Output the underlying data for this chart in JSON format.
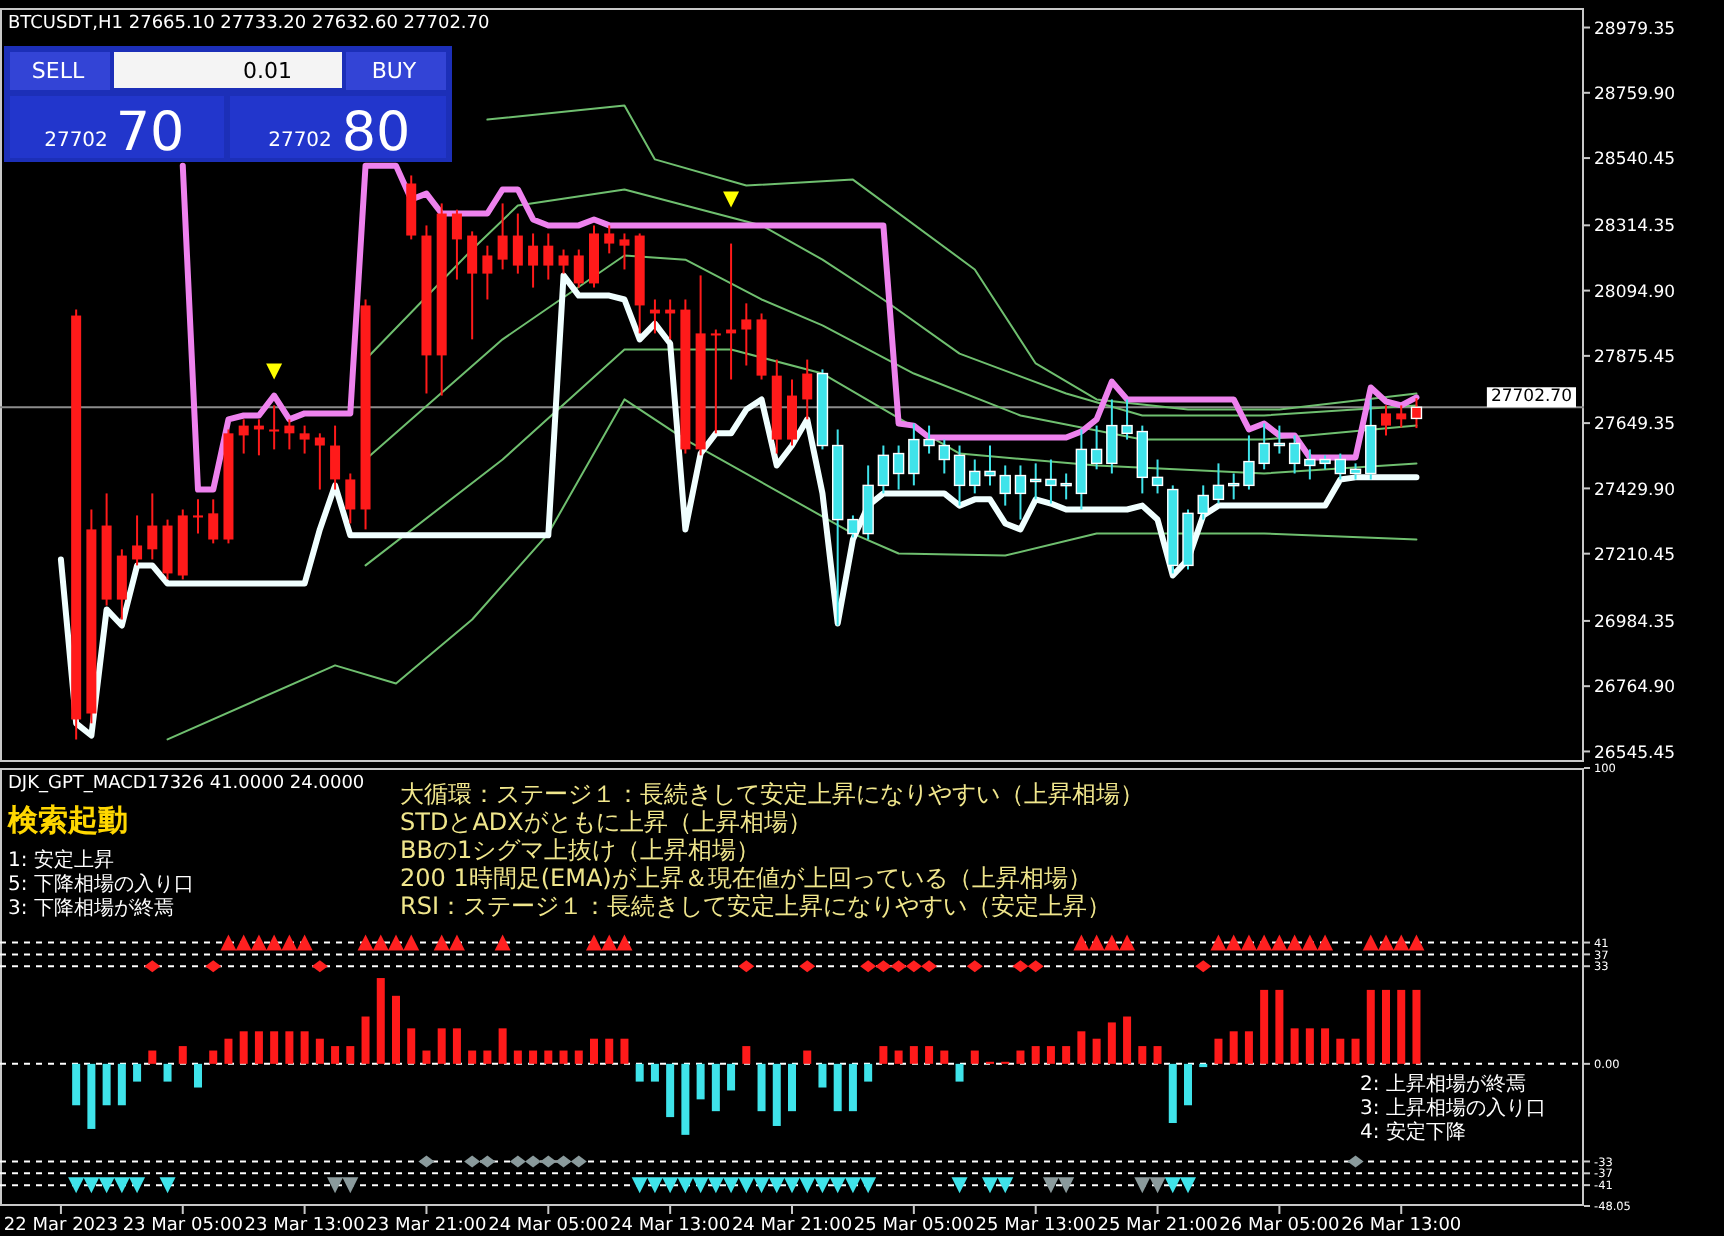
{
  "chart_data": [
    {
      "type": "candlestick",
      "title": "BTCUSDT,H1 27665.10 27733.20 27632.60 27702.70",
      "x": [
        "2023-03-22T21:00",
        "2023-03-22T22:00",
        "2023-03-22T23:00",
        "2023-03-23T00:00",
        "2023-03-23T01:00",
        "2023-03-23T02:00",
        "2023-03-23T03:00",
        "2023-03-23T04:00",
        "2023-03-23T05:00",
        "2023-03-23T06:00",
        "2023-03-23T07:00",
        "2023-03-23T08:00",
        "2023-03-23T09:00",
        "2023-03-23T10:00",
        "2023-03-23T11:00",
        "2023-03-23T12:00",
        "2023-03-23T13:00",
        "2023-03-23T14:00",
        "2023-03-23T15:00",
        "2023-03-23T16:00",
        "2023-03-23T17:00",
        "2023-03-23T18:00",
        "2023-03-23T19:00",
        "2023-03-23T20:00",
        "2023-03-23T21:00",
        "2023-03-23T22:00",
        "2023-03-23T23:00",
        "2023-03-24T00:00",
        "2023-03-24T01:00",
        "2023-03-24T02:00",
        "2023-03-24T03:00",
        "2023-03-24T04:00",
        "2023-03-24T05:00",
        "2023-03-24T06:00",
        "2023-03-24T07:00",
        "2023-03-24T08:00",
        "2023-03-24T09:00",
        "2023-03-24T10:00",
        "2023-03-24T11:00",
        "2023-03-24T12:00",
        "2023-03-24T13:00",
        "2023-03-24T14:00",
        "2023-03-24T15:00",
        "2023-03-24T16:00",
        "2023-03-24T17:00",
        "2023-03-24T18:00",
        "2023-03-24T19:00",
        "2023-03-24T20:00",
        "2023-03-24T21:00",
        "2023-03-24T22:00",
        "2023-03-24T23:00",
        "2023-03-25T00:00",
        "2023-03-25T01:00",
        "2023-03-25T02:00",
        "2023-03-25T03:00",
        "2023-03-25T04:00",
        "2023-03-25T05:00",
        "2023-03-25T06:00",
        "2023-03-25T07:00",
        "2023-03-25T08:00",
        "2023-03-25T09:00",
        "2023-03-25T10:00",
        "2023-03-25T11:00",
        "2023-03-25T12:00",
        "2023-03-25T13:00",
        "2023-03-25T14:00",
        "2023-03-25T15:00",
        "2023-03-25T16:00",
        "2023-03-25T17:00",
        "2023-03-25T18:00",
        "2023-03-25T19:00",
        "2023-03-25T20:00",
        "2023-03-25T21:00",
        "2023-03-25T22:00",
        "2023-03-25T23:00",
        "2023-03-26T00:00",
        "2023-03-26T01:00",
        "2023-03-26T02:00",
        "2023-03-26T03:00",
        "2023-03-26T04:00",
        "2023-03-26T05:00",
        "2023-03-26T06:00",
        "2023-03-26T07:00",
        "2023-03-26T08:00",
        "2023-03-26T09:00",
        "2023-03-26T10:00",
        "2023-03-26T11:00",
        "2023-03-26T12:00",
        "2023-03-26T13:00",
        "2023-03-26T14:00"
      ],
      "ohlc": [
        null,
        [
          28011,
          28031,
          26586,
          26653
        ],
        [
          27292,
          27359,
          26640,
          26673
        ],
        [
          27305,
          27413,
          27036,
          27056
        ],
        [
          27204,
          27225,
          26989,
          27056
        ],
        [
          27238,
          27339,
          27171,
          27191
        ],
        [
          27305,
          27413,
          27191,
          27225
        ],
        [
          27305,
          27325,
          27124,
          27144
        ],
        [
          27339,
          27359,
          27124,
          27137
        ],
        [
          27339,
          27393,
          27278,
          27332
        ],
        [
          27346,
          27393,
          27245,
          27258
        ],
        [
          27615,
          27628,
          27245,
          27258
        ],
        [
          27641,
          27662,
          27547,
          27608
        ],
        [
          27641,
          27662,
          27541,
          27628
        ],
        [
          27628,
          27709,
          27561,
          27621
        ],
        [
          27641,
          27662,
          27561,
          27615
        ],
        [
          27615,
          27641,
          27547,
          27594
        ],
        [
          27601,
          27615,
          27426,
          27574
        ],
        [
          27574,
          27641,
          27426,
          27460
        ],
        [
          27460,
          27480,
          27312,
          27359
        ],
        [
          28045,
          28065,
          27292,
          27359
        ],
        null,
        null,
        [
          28455,
          28482,
          28267,
          28280
        ],
        [
          28280,
          28314,
          27749,
          27877
        ],
        [
          28354,
          28388,
          27742,
          27877
        ],
        [
          28354,
          28367,
          28132,
          28267
        ],
        [
          28280,
          28294,
          27931,
          28152
        ],
        [
          28213,
          28246,
          28065,
          28152
        ],
        [
          28280,
          28388,
          28166,
          28199
        ],
        [
          28280,
          28354,
          28152,
          28179
        ],
        [
          28246,
          28287,
          28105,
          28179
        ],
        [
          28246,
          28287,
          28132,
          28179
        ],
        [
          28213,
          28233,
          28152,
          28179
        ],
        [
          28213,
          28233,
          28105,
          28119
        ],
        [
          28287,
          28314,
          28105,
          28119
        ],
        [
          28287,
          28314,
          28220,
          28253
        ],
        [
          28267,
          28287,
          28166,
          28246
        ],
        [
          28280,
          28287,
          27951,
          28045
        ],
        [
          28031,
          28065,
          27951,
          28018
        ],
        [
          28031,
          28065,
          27931,
          28018
        ],
        [
          28031,
          28065,
          27547,
          27561
        ],
        [
          27951,
          28146,
          27541,
          27561
        ],
        [
          27951,
          27964,
          27615,
          27944
        ],
        [
          27964,
          28253,
          27796,
          27951
        ],
        [
          27998,
          28052,
          27843,
          27964
        ],
        [
          27998,
          28018,
          27796,
          27809
        ],
        [
          27809,
          27863,
          27547,
          27594
        ],
        [
          27742,
          27796,
          27574,
          27594
        ],
        [
          27816,
          27863,
          27662,
          27729
        ],
        [
          27574,
          27830,
          27561,
          27816
        ],
        [
          27325,
          27628,
          26969,
          27574
        ],
        [
          27278,
          27339,
          27265,
          27325
        ],
        [
          27278,
          27507,
          27258,
          27440
        ],
        [
          27440,
          27574,
          27413,
          27541
        ],
        [
          27480,
          27574,
          27426,
          27547
        ],
        [
          27480,
          27648,
          27440,
          27594
        ],
        [
          27574,
          27641,
          27547,
          27594
        ],
        [
          27527,
          27594,
          27480,
          27574
        ],
        [
          27440,
          27574,
          27372,
          27541
        ],
        [
          27440,
          27527,
          27413,
          27487
        ],
        [
          27473,
          27574,
          27440,
          27487
        ],
        [
          27413,
          27507,
          27372,
          27473
        ],
        [
          27413,
          27507,
          27325,
          27473
        ],
        [
          27453,
          27514,
          27393,
          27460
        ],
        [
          27440,
          27527,
          27379,
          27460
        ],
        [
          27440,
          27480,
          27393,
          27446
        ],
        [
          27413,
          27628,
          27359,
          27561
        ],
        [
          27514,
          27641,
          27494,
          27561
        ],
        [
          27514,
          27729,
          27480,
          27641
        ],
        [
          27615,
          27729,
          27594,
          27641
        ],
        [
          27467,
          27641,
          27413,
          27621
        ],
        [
          27440,
          27527,
          27413,
          27467
        ],
        [
          27171,
          27440,
          27144,
          27426
        ],
        [
          27171,
          27359,
          27157,
          27346
        ],
        [
          27346,
          27440,
          27325,
          27406
        ],
        [
          27393,
          27514,
          27379,
          27440
        ],
        [
          27440,
          27480,
          27393,
          27446
        ],
        [
          27440,
          27608,
          27426,
          27520
        ],
        [
          27514,
          27648,
          27494,
          27581
        ],
        [
          27574,
          27641,
          27547,
          27581
        ],
        [
          27514,
          27608,
          27480,
          27581
        ],
        [
          27507,
          27561,
          27460,
          27527
        ],
        [
          27514,
          27541,
          27494,
          27527
        ],
        [
          27480,
          27547,
          27460,
          27527
        ],
        [
          27480,
          27514,
          27460,
          27494
        ],
        [
          27480,
          27729,
          27460,
          27641
        ],
        [
          27682,
          27709,
          27608,
          27641
        ],
        [
          27682,
          27709,
          27635,
          27662
        ],
        [
          27665.1,
          27733.2,
          27632.6,
          27702.7
        ]
      ],
      "colors": [
        null,
        "#ff1a1a",
        "#ff1a1a",
        "#ff1a1a",
        "#ff1a1a",
        "#ff1a1a",
        "#ff1a1a",
        "#ff1a1a",
        "#ff1a1a",
        "#ff1a1a",
        "#ff1a1a",
        "#ff1a1a",
        "#ff1a1a",
        "#ff1a1a",
        "#ff1a1a",
        "#ff1a1a",
        "#ff1a1a",
        "#ff1a1a",
        "#ff1a1a",
        "#ff1a1a",
        "#ff1a1a",
        null,
        null,
        "#ff1a1a",
        "#ff1a1a",
        "#ff1a1a",
        "#ff1a1a",
        "#ff1a1a",
        "#ff1a1a",
        "#ff1a1a",
        "#ff1a1a",
        "#ff1a1a",
        "#ff1a1a",
        "#ff1a1a",
        "#ff1a1a",
        "#ff1a1a",
        "#ff1a1a",
        "#ff1a1a",
        "#ff1a1a",
        "#ff1a1a",
        "#ff1a1a",
        "#ff1a1a",
        "#ff1a1a",
        "#ff1a1a",
        "#ff1a1a",
        "#ff1a1a",
        "#ff1a1a",
        "#ff1a1a",
        "#ff1a1a",
        "#ff1a1a",
        "#3fe3ea",
        "#3fe3ea",
        "#3fe3ea",
        "#3fe3ea",
        "#3fe3ea",
        "#3fe3ea",
        "#3fe3ea",
        "#3fe3ea",
        "#3fe3ea",
        "#3fe3ea",
        "#3fe3ea",
        "#3fe3ea",
        "#3fe3ea",
        "#3fe3ea",
        "#3fe3ea",
        "#3fe3ea",
        "#3fe3ea",
        "#3fe3ea",
        "#3fe3ea",
        "#3fe3ea",
        "#3fe3ea",
        "#3fe3ea",
        "#3fe3ea",
        "#3fe3ea",
        "#3fe3ea",
        "#3fe3ea",
        "#3fe3ea",
        "#3fe3ea",
        "#3fe3ea",
        "#3fe3ea",
        "#3fe3ea",
        "#3fe3ea",
        "#3fe3ea",
        "#3fe3ea",
        "#3fe3ea",
        "#3fe3ea",
        "#3fe3ea",
        "#ff1a1a",
        "#ff1a1a",
        "#ff1a1a"
      ],
      "series": [
        {
          "type": "line",
          "color": "#6fbf6f",
          "x": [
            "2023-03-24T01:00",
            "2023-03-24T10:00",
            "2023-03-24T12:00",
            "2023-03-24T18:00",
            "2023-03-25T01:00",
            "2023-03-25T09:00",
            "2023-03-25T13:00",
            "2023-03-25T17:00",
            "2023-03-25T23:00",
            "2023-03-26T05:00",
            "2023-03-26T14:00"
          ],
          "values": [
            28670,
            28717,
            28536,
            28448,
            28468,
            28166,
            27850,
            27729,
            27695,
            27695,
            27749
          ]
        },
        {
          "type": "line",
          "color": "#6fbf6f",
          "x": [
            "2023-03-23T17:00",
            "2023-03-24T00:00",
            "2023-03-24T03:00",
            "2023-03-24T10:00",
            "2023-03-24T14:00",
            "2023-03-24T19:00",
            "2023-03-24T23:00",
            "2023-03-25T03:00",
            "2023-03-25T08:00",
            "2023-03-25T15:00",
            "2023-03-25T20:00",
            "2023-03-26T04:00",
            "2023-03-26T14:00"
          ],
          "values": [
            27863,
            28233,
            28381,
            28435,
            28381,
            28314,
            28199,
            28065,
            27883,
            27749,
            27675,
            27675,
            27709
          ]
        },
        {
          "type": "line",
          "color": "#6fbf6f",
          "x": [
            "2023-03-23T17:00",
            "2023-03-24T02:00",
            "2023-03-24T10:00",
            "2023-03-24T14:00",
            "2023-03-24T19:00",
            "2023-03-24T23:00",
            "2023-03-25T05:00",
            "2023-03-25T12:00",
            "2023-03-25T20:00",
            "2023-03-26T04:00",
            "2023-03-26T14:00"
          ],
          "values": [
            27527,
            27931,
            28213,
            28199,
            28065,
            27978,
            27816,
            27675,
            27594,
            27594,
            27641
          ]
        },
        {
          "type": "line",
          "color": "#6fbf6f",
          "x": [
            "2023-03-23T17:00",
            "2023-03-24T02:00",
            "2023-03-24T10:00",
            "2023-03-24T17:00",
            "2023-03-24T23:00",
            "2023-03-25T08:00",
            "2023-03-25T17:00",
            "2023-03-26T04:00",
            "2023-03-26T14:00"
          ],
          "values": [
            27171,
            27527,
            27897,
            27897,
            27816,
            27547,
            27507,
            27480,
            27514
          ]
        },
        {
          "type": "line",
          "color": "#6fbf6f",
          "x": [
            "2023-03-23T04:00",
            "2023-03-23T15:00",
            "2023-03-23T19:00",
            "2023-03-24T00:00",
            "2023-03-24T05:00",
            "2023-03-24T10:00",
            "2023-03-24T14:00",
            "2023-03-25T01:00",
            "2023-03-25T04:00",
            "2023-03-25T11:00",
            "2023-03-25T17:00",
            "2023-03-26T04:00",
            "2023-03-26T14:00"
          ],
          "values": [
            26586,
            26835,
            26774,
            26989,
            27278,
            27729,
            27594,
            27278,
            27211,
            27204,
            27278,
            27278,
            27258
          ]
        },
        {
          "type": "line",
          "color": "#ee82ee",
          "values": [
            null,
            null,
            null,
            null,
            null,
            null,
            null,
            null,
            28515,
            27426,
            27426,
            27662,
            27675,
            27675,
            27742,
            27662,
            27682,
            27682,
            27682,
            27682,
            28515,
            28515,
            28515,
            28401,
            28421,
            28354,
            28354,
            28354,
            28354,
            28435,
            28435,
            28334,
            28314,
            28314,
            28314,
            28334,
            28314,
            28314,
            28314,
            28314,
            28314,
            28314,
            28314,
            28314,
            28314,
            28314,
            28314,
            28314,
            28314,
            28314,
            28314,
            28314,
            28314,
            28314,
            28314,
            27648,
            27641,
            27601,
            27601,
            27601,
            27601,
            27601,
            27601,
            27601,
            27601,
            27601,
            27601,
            27621,
            27662,
            27789,
            27729,
            27729,
            27729,
            27729,
            27729,
            27729,
            27729,
            27729,
            27628,
            27648,
            27608,
            27608,
            27534,
            27534,
            27534,
            27534,
            27769,
            27722,
            27709,
            27736
          ]
        },
        {
          "type": "line",
          "color": "#f0ffff",
          "values": [
            27191,
            26640,
            26599,
            27023,
            26969,
            27171,
            27171,
            27110,
            27110,
            27110,
            27110,
            27110,
            27110,
            27110,
            27110,
            27110,
            27110,
            27292,
            27440,
            27272,
            27272,
            27272,
            27272,
            27272,
            27272,
            27272,
            27272,
            27272,
            27272,
            27272,
            27272,
            27272,
            27272,
            28146,
            28078,
            28078,
            28078,
            28065,
            27931,
            27984,
            27917,
            27292,
            27547,
            27615,
            27615,
            27695,
            27729,
            27507,
            27574,
            27662,
            27413,
            26976,
            27258,
            27372,
            27413,
            27413,
            27413,
            27413,
            27413,
            27372,
            27393,
            27393,
            27312,
            27292,
            27393,
            27379,
            27359,
            27359,
            27359,
            27359,
            27359,
            27372,
            27325,
            27137,
            27191,
            27339,
            27372,
            27372,
            27372,
            27372,
            27372,
            27372,
            27372,
            27372,
            27460,
            27467,
            27467,
            27467,
            27467,
            27467
          ]
        },
        {
          "type": "scatter",
          "marker": "triangle",
          "color": "#ffff00",
          "x": [
            "2023-03-23T11:00",
            "2023-03-24T17:00"
          ],
          "values": [
            27823,
            28401
          ]
        }
      ],
      "xlim": [
        "2023-03-22T17:00",
        "2023-03-27T01:00"
      ],
      "ylim": [
        26510,
        29045
      ],
      "yticks": [
        28979.35,
        {
          "value": 28759.9,
          "label": "28759.90"
        },
        28540.45,
        28314.35,
        {
          "value": 28094.9,
          "label": "28094.90"
        },
        27875.45,
        27649.35,
        {
          "value": 27429.9,
          "label": "27429.90"
        },
        27210.45,
        26984.35,
        {
          "value": 26764.9,
          "label": "26764.90"
        },
        26545.45
      ],
      "ref_lines": [
        {
          "axis": "y",
          "value": 27702.7,
          "label": "27702.70",
          "color": "#8c8c8c"
        }
      ],
      "tick_labels": "y",
      "annotations": [
        "SELL",
        "0.01",
        "BUY",
        "27702",
        "70",
        "27702",
        "80"
      ]
    },
    {
      "type": "bar",
      "title": "DJK_GPT_MACD17326 41.0000 24.0000",
      "x": [
        "2023-03-22T22:00",
        "2023-03-22T23:00",
        "2023-03-23T00:00",
        "2023-03-23T01:00",
        "2023-03-23T02:00",
        "2023-03-23T03:00",
        "2023-03-23T04:00",
        "2023-03-23T05:00",
        "2023-03-23T06:00",
        "2023-03-23T07:00",
        "2023-03-23T08:00",
        "2023-03-23T09:00",
        "2023-03-23T10:00",
        "2023-03-23T11:00",
        "2023-03-23T12:00",
        "2023-03-23T13:00",
        "2023-03-23T14:00",
        "2023-03-23T15:00",
        "2023-03-23T16:00",
        "2023-03-23T17:00",
        "2023-03-23T18:00",
        "2023-03-23T19:00",
        "2023-03-23T20:00",
        "2023-03-23T21:00",
        "2023-03-23T22:00",
        "2023-03-23T23:00",
        "2023-03-24T00:00",
        "2023-03-24T01:00",
        "2023-03-24T02:00",
        "2023-03-24T03:00",
        "2023-03-24T04:00",
        "2023-03-24T05:00",
        "2023-03-24T06:00",
        "2023-03-24T07:00",
        "2023-03-24T08:00",
        "2023-03-24T09:00",
        "2023-03-24T10:00",
        "2023-03-24T11:00",
        "2023-03-24T12:00",
        "2023-03-24T13:00",
        "2023-03-24T14:00",
        "2023-03-24T15:00",
        "2023-03-24T16:00",
        "2023-03-24T17:00",
        "2023-03-24T18:00",
        "2023-03-24T19:00",
        "2023-03-24T20:00",
        "2023-03-24T21:00",
        "2023-03-24T22:00",
        "2023-03-24T23:00",
        "2023-03-25T00:00",
        "2023-03-25T01:00",
        "2023-03-25T02:00",
        "2023-03-25T03:00",
        "2023-03-25T04:00",
        "2023-03-25T05:00",
        "2023-03-25T06:00",
        "2023-03-25T07:00",
        "2023-03-25T08:00",
        "2023-03-25T09:00",
        "2023-03-25T10:00",
        "2023-03-25T11:00",
        "2023-03-25T12:00",
        "2023-03-25T13:00",
        "2023-03-25T14:00",
        "2023-03-25T15:00",
        "2023-03-25T16:00",
        "2023-03-25T17:00",
        "2023-03-25T18:00",
        "2023-03-25T19:00",
        "2023-03-25T20:00",
        "2023-03-25T21:00",
        "2023-03-25T22:00",
        "2023-03-25T23:00",
        "2023-03-26T00:00",
        "2023-03-26T01:00",
        "2023-03-26T02:00",
        "2023-03-26T03:00",
        "2023-03-26T04:00",
        "2023-03-26T05:00",
        "2023-03-26T06:00",
        "2023-03-26T07:00",
        "2023-03-26T08:00",
        "2023-03-26T09:00",
        "2023-03-26T10:00",
        "2023-03-26T11:00",
        "2023-03-26T12:00",
        "2023-03-26T13:00",
        "2023-03-26T14:00"
      ],
      "series": [
        {
          "type": "bar",
          "values": [
            -14,
            -22,
            -14,
            -14,
            -6,
            4.5,
            -6,
            6,
            -8,
            4.5,
            8.5,
            11,
            11,
            11,
            11,
            11,
            8.5,
            6,
            6,
            16,
            29,
            23,
            12,
            4.5,
            12,
            12,
            4.5,
            4.5,
            12,
            4.5,
            4.5,
            4.5,
            4.5,
            4.5,
            8.5,
            8.5,
            8.5,
            -6,
            -6,
            -18,
            -24,
            -12,
            -16,
            -9,
            6,
            -16,
            -21,
            -16,
            4.5,
            -8,
            -16,
            -16,
            -6,
            6,
            4.5,
            6,
            6,
            4.5,
            -6,
            4.5,
            0.7,
            0.7,
            4.5,
            6,
            6,
            6,
            11,
            8.5,
            14,
            16,
            6,
            6,
            -20,
            -14,
            -1.1,
            8.5,
            11,
            11,
            25,
            25,
            12,
            12,
            12,
            8.5,
            8.5,
            25,
            25,
            25,
            25
          ],
          "colors": [
            "#3fe3ea",
            "#3fe3ea",
            "#3fe3ea",
            "#3fe3ea",
            "#3fe3ea",
            "#ff1a1a",
            "#3fe3ea",
            "#ff1a1a",
            "#3fe3ea",
            "#ff1a1a",
            "#ff1a1a",
            "#ff1a1a",
            "#ff1a1a",
            "#ff1a1a",
            "#ff1a1a",
            "#ff1a1a",
            "#ff1a1a",
            "#ff1a1a",
            "#ff1a1a",
            "#ff1a1a",
            "#ff1a1a",
            "#ff1a1a",
            "#ff1a1a",
            "#ff1a1a",
            "#ff1a1a",
            "#ff1a1a",
            "#ff1a1a",
            "#ff1a1a",
            "#ff1a1a",
            "#ff1a1a",
            "#ff1a1a",
            "#ff1a1a",
            "#ff1a1a",
            "#ff1a1a",
            "#ff1a1a",
            "#ff1a1a",
            "#ff1a1a",
            "#3fe3ea",
            "#3fe3ea",
            "#3fe3ea",
            "#3fe3ea",
            "#3fe3ea",
            "#3fe3ea",
            "#3fe3ea",
            "#ff1a1a",
            "#3fe3ea",
            "#3fe3ea",
            "#3fe3ea",
            "#ff1a1a",
            "#3fe3ea",
            "#3fe3ea",
            "#3fe3ea",
            "#3fe3ea",
            "#ff1a1a",
            "#ff1a1a",
            "#ff1a1a",
            "#ff1a1a",
            "#ff1a1a",
            "#3fe3ea",
            "#ff1a1a",
            "#ff1a1a",
            "#ff1a1a",
            "#ff1a1a",
            "#ff1a1a",
            "#ff1a1a",
            "#ff1a1a",
            "#ff1a1a",
            "#ff1a1a",
            "#ff1a1a",
            "#ff1a1a",
            "#ff1a1a",
            "#ff1a1a",
            "#3fe3ea",
            "#3fe3ea",
            "#3fe3ea",
            "#ff1a1a",
            "#ff1a1a",
            "#ff1a1a",
            "#ff1a1a",
            "#ff1a1a",
            "#ff1a1a",
            "#ff1a1a",
            "#ff1a1a",
            "#ff1a1a",
            "#ff1a1a",
            "#ff1a1a",
            "#ff1a1a",
            "#ff1a1a",
            "#ff1a1a"
          ]
        },
        {
          "type": "scatter",
          "marker": "triangle",
          "color": "#ff2020",
          "x": [
            "2023-03-23T08:00",
            "2023-03-23T09:00",
            "2023-03-23T10:00",
            "2023-03-23T11:00",
            "2023-03-23T12:00",
            "2023-03-23T13:00",
            "2023-03-23T17:00",
            "2023-03-23T18:00",
            "2023-03-23T19:00",
            "2023-03-23T20:00",
            "2023-03-23T22:00",
            "2023-03-23T23:00",
            "2023-03-24T02:00",
            "2023-03-24T08:00",
            "2023-03-24T09:00",
            "2023-03-24T10:00",
            "2023-03-25T16:00",
            "2023-03-25T17:00",
            "2023-03-25T18:00",
            "2023-03-25T19:00",
            "2023-03-26T01:00",
            "2023-03-26T02:00",
            "2023-03-26T03:00",
            "2023-03-26T04:00",
            "2023-03-26T05:00",
            "2023-03-26T06:00",
            "2023-03-26T07:00",
            "2023-03-26T08:00",
            "2023-03-26T11:00",
            "2023-03-26T12:00",
            "2023-03-26T13:00",
            "2023-03-26T14:00"
          ],
          "values": [
            41,
            41,
            41,
            41,
            41,
            41,
            41,
            41,
            41,
            41,
            41,
            41,
            41,
            41,
            41,
            41,
            41,
            41,
            41,
            41,
            41,
            41,
            41,
            41,
            41,
            41,
            41,
            41,
            41,
            41,
            41,
            41
          ]
        },
        {
          "type": "scatter",
          "marker": "diamond",
          "color": "#ff2020",
          "x": [
            "2023-03-23T03:00",
            "2023-03-23T07:00",
            "2023-03-23T14:00",
            "2023-03-24T18:00",
            "2023-03-24T22:00",
            "2023-03-25T02:00",
            "2023-03-25T03:00",
            "2023-03-25T04:00",
            "2023-03-25T05:00",
            "2023-03-25T06:00",
            "2023-03-25T09:00",
            "2023-03-25T12:00",
            "2023-03-25T13:00",
            "2023-03-26T00:00"
          ],
          "values": [
            33,
            33,
            33,
            33,
            33,
            33,
            33,
            33,
            33,
            33,
            33,
            33,
            33,
            33
          ]
        },
        {
          "type": "scatter",
          "marker": "triangle",
          "color": "#3fe3ea",
          "x": [
            "2023-03-22T22:00",
            "2023-03-22T23:00",
            "2023-03-23T00:00",
            "2023-03-23T01:00",
            "2023-03-23T02:00",
            "2023-03-23T04:00",
            "2023-03-24T11:00",
            "2023-03-24T12:00",
            "2023-03-24T13:00",
            "2023-03-24T14:00",
            "2023-03-24T15:00",
            "2023-03-24T16:00",
            "2023-03-24T17:00",
            "2023-03-24T18:00",
            "2023-03-24T19:00",
            "2023-03-24T20:00",
            "2023-03-24T21:00",
            "2023-03-24T22:00",
            "2023-03-24T23:00",
            "2023-03-25T00:00",
            "2023-03-25T01:00",
            "2023-03-25T02:00",
            "2023-03-25T08:00",
            "2023-03-25T10:00",
            "2023-03-25T11:00",
            "2023-03-25T22:00",
            "2023-03-25T23:00"
          ],
          "values": [
            -41,
            -41,
            -41,
            -41,
            -41,
            -41,
            -41,
            -41,
            -41,
            -41,
            -41,
            -41,
            -41,
            -41,
            -41,
            -41,
            -41,
            -41,
            -41,
            -41,
            -41,
            -41,
            -41,
            -41,
            -41,
            -41,
            -41
          ]
        },
        {
          "type": "scatter",
          "marker": "triangle",
          "color": "#8a9a9c",
          "x": [
            "2023-03-23T15:00",
            "2023-03-23T16:00",
            "2023-03-25T14:00",
            "2023-03-25T15:00",
            "2023-03-25T20:00",
            "2023-03-25T21:00"
          ],
          "values": [
            -41,
            -41,
            -41,
            -41,
            -41,
            -41
          ]
        },
        {
          "type": "scatter",
          "marker": "diamond",
          "color": "#8a9a9c",
          "x": [
            "2023-03-23T21:00",
            "2023-03-24T00:00",
            "2023-03-24T01:00",
            "2023-03-24T03:00",
            "2023-03-24T04:00",
            "2023-03-24T05:00",
            "2023-03-24T06:00",
            "2023-03-24T07:00",
            "2023-03-26T10:00"
          ],
          "values": [
            -33,
            -33,
            -33,
            -33,
            -33,
            -33,
            -33,
            -33,
            -33
          ]
        }
      ],
      "xlim": [
        "2023-03-22T17:00",
        "2023-03-27T01:00"
      ],
      "xticks": [
        {
          "value": "2023-03-22T21:00",
          "label": "22 Mar 2023"
        },
        {
          "value": "2023-03-23T05:00",
          "label": "23 Mar 05:00"
        },
        {
          "value": "2023-03-23T13:00",
          "label": "23 Mar 13:00"
        },
        {
          "value": "2023-03-23T21:00",
          "label": "23 Mar 21:00"
        },
        {
          "value": "2023-03-24T05:00",
          "label": "24 Mar 05:00"
        },
        {
          "value": "2023-03-24T13:00",
          "label": "24 Mar 13:00"
        },
        {
          "value": "2023-03-24T21:00",
          "label": "24 Mar 21:00"
        },
        {
          "value": "2023-03-25T05:00",
          "label": "25 Mar 05:00"
        },
        {
          "value": "2023-03-25T13:00",
          "label": "25 Mar 13:00"
        },
        {
          "value": "2023-03-25T21:00",
          "label": "25 Mar 21:00"
        },
        {
          "value": "2023-03-26T05:00",
          "label": "26 Mar 05:00"
        },
        {
          "value": "2023-03-26T13:00",
          "label": "26 Mar 13:00"
        }
      ],
      "ylim": [
        -48.05,
        100
      ],
      "yticks": [
        100,
        41,
        37,
        33,
        {
          "value": 0,
          "label": "0.00"
        },
        -33,
        -37,
        -41,
        -48.05
      ],
      "ref_lines": [
        {
          "axis": "y",
          "value": 41,
          "color": "#ffffff",
          "line_style": "dashed"
        },
        {
          "axis": "y",
          "value": 37,
          "color": "#ffffff",
          "line_style": "dashed"
        },
        {
          "axis": "y",
          "value": 33,
          "color": "#ffffff",
          "line_style": "dashed"
        },
        {
          "axis": "y",
          "value": 0,
          "color": "#ffffff",
          "line_style": "dashed"
        },
        {
          "axis": "y",
          "value": -33,
          "color": "#ffffff",
          "line_style": "dashed"
        },
        {
          "axis": "y",
          "value": -37,
          "color": "#ffffff",
          "line_style": "dashed"
        },
        {
          "axis": "y",
          "value": -41,
          "color": "#ffffff",
          "line_style": "dashed"
        }
      ],
      "annotations": [
        "大循環：ステージ１：長続きして安定上昇になりやすい（上昇相場）",
        "STDとADXがともに上昇（上昇相場）",
        "BBの1シグマ上抜け（上昇相場）",
        "200 1時間足(EMA)が上昇＆現在値が上回っている（上昇相場）",
        "RSI：ステージ１：長続きして安定上昇になりやすい（安定上昇）",
        "検索起動",
        "1: 安定上昇",
        "5: 下降相場の入り口",
        "3: 下降相場が終焉",
        "2: 上昇相場が終焉",
        "3: 上昇相場の入り口",
        "4: 安定下降"
      ]
    }
  ]
}
